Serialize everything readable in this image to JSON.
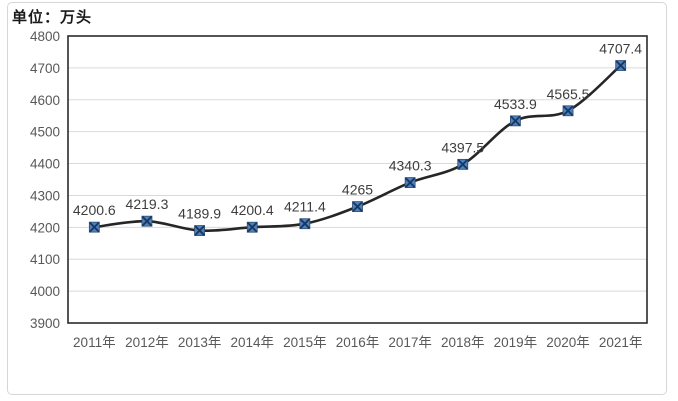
{
  "header": {
    "unit_label": "单位：万头"
  },
  "chart_data": {
    "type": "line",
    "title": "",
    "xlabel": "",
    "ylabel": "单位：万头",
    "categories": [
      "2011年",
      "2012年",
      "2013年",
      "2014年",
      "2015年",
      "2016年",
      "2017年",
      "2018年",
      "2019年",
      "2020年",
      "2021年"
    ],
    "values": [
      4200.6,
      4219.3,
      4189.9,
      4200.4,
      4211.4,
      4265,
      4340.3,
      4397.5,
      4533.9,
      4565.5,
      4707.4
    ],
    "data_labels": [
      "4200.6",
      "4219.3",
      "4189.9",
      "4200.4",
      "4211.4",
      "4265",
      "4340.3",
      "4397.5",
      "4533.9",
      "4565.5",
      "4707.4"
    ],
    "ylim": [
      3900,
      4800
    ],
    "yticks": [
      3900,
      4000,
      4100,
      4200,
      4300,
      4400,
      4500,
      4600,
      4700,
      4800
    ],
    "grid": true,
    "legend": false,
    "line_smoothed": true,
    "marker": "square-with-x"
  },
  "colors": {
    "line": "#262626",
    "plot_border": "#2b2b2b",
    "gridline": "#d9d9d9",
    "marker_fill": "#4f81bd",
    "marker_border": "#2e4d74",
    "marker_x": "#17375e",
    "tick_text": "#595959",
    "data_label_text": "#3d3d3d",
    "frame_border": "#d6d6d6",
    "background": "#ffffff"
  }
}
